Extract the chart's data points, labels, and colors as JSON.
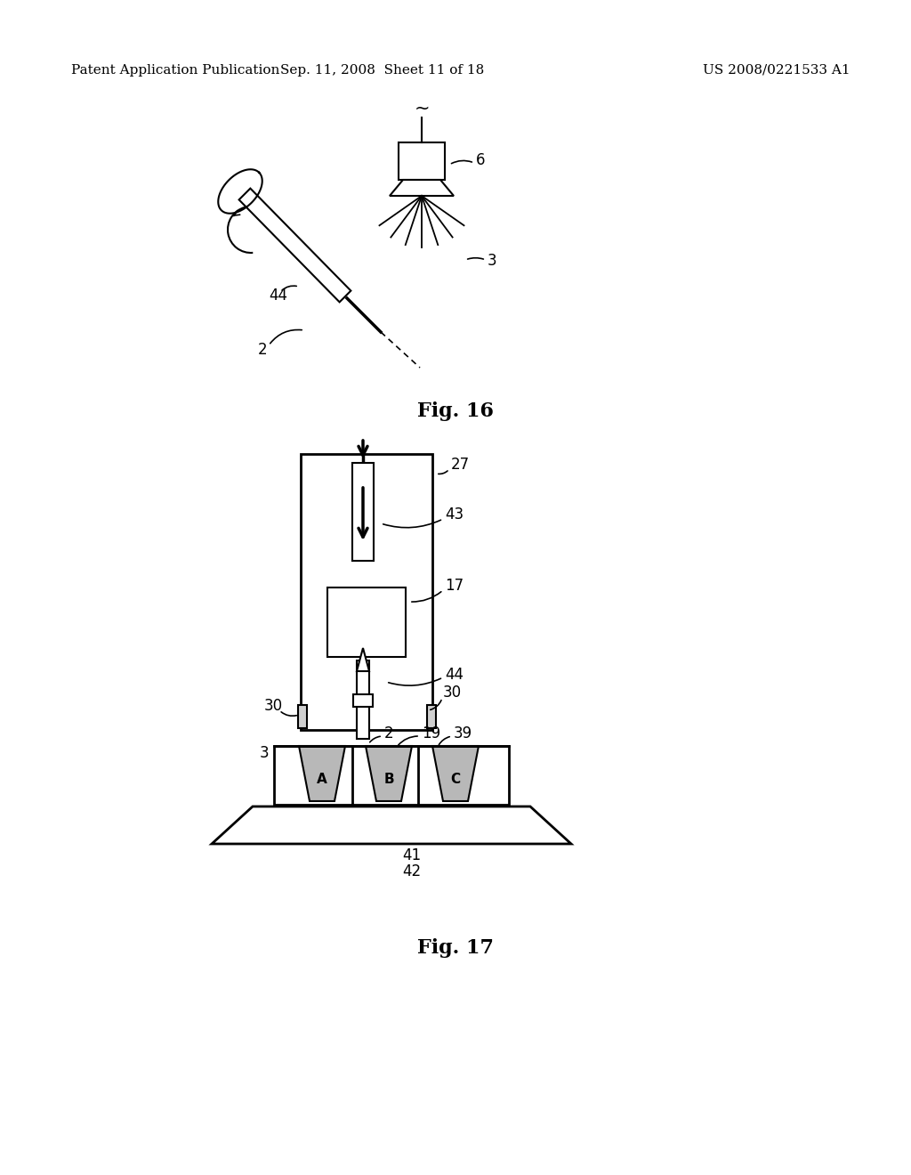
{
  "background_color": "#ffffff",
  "header_left": "Patent Application Publication",
  "header_center": "Sep. 11, 2008  Sheet 11 of 18",
  "header_right": "US 2008/0221533 A1",
  "fig16_caption": "Fig. 16",
  "fig17_caption": "Fig. 17",
  "text_color": "#000000"
}
